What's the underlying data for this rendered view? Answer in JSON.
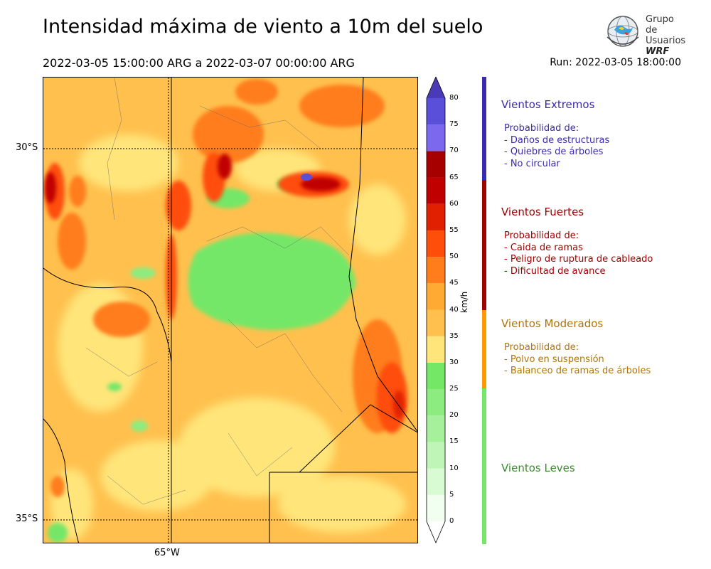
{
  "header": {
    "title": "Intensidad máxima de viento a 10m del suelo",
    "period": "2022-03-05 15:00:00 ARG  a  2022-03-07 00:00:00 ARG",
    "run": "Run: 2022-03-05 18:00:00"
  },
  "logo": {
    "line1": "Grupo de",
    "line2": "Usuarios",
    "line3": "WRF"
  },
  "map": {
    "lat_labels": [
      "30°S",
      "35°S"
    ],
    "lon_labels": [
      "65°W"
    ]
  },
  "colorbar": {
    "unit": "km/h",
    "ticks": [
      "0",
      "5",
      "10",
      "15",
      "20",
      "25",
      "30",
      "35",
      "40",
      "45",
      "50",
      "55",
      "60",
      "65",
      "70",
      "75",
      "80"
    ],
    "colors": [
      "#f0fff0",
      "#d9fbd3",
      "#c0f5b8",
      "#a6f09c",
      "#8cec80",
      "#74e767",
      "#ffe57a",
      "#ffc04d",
      "#ffab33",
      "#ff7d1a",
      "#ff4d0a",
      "#e02000",
      "#c00000",
      "#a60000",
      "#7b68ee",
      "#5a4fd8",
      "#4a3ab8"
    ]
  },
  "categories": [
    {
      "title": "Vientos Extremos",
      "color": "#3a2ab0",
      "lines": "Probabilidad de:\n- Daños de estructuras\n- Quiebres de árboles\n- No circular"
    },
    {
      "title": "Vientos Fuertes",
      "color": "#a00000",
      "lines": "Probabilidad de:\n- Caida de ramas\n- Peligro de ruptura de cableado\n- Dificultad de avance"
    },
    {
      "title": "Vientos Moderados",
      "color": "#b0740a",
      "lines": "Probabilidad de:\n- Polvo en suspensión\n- Balanceo de ramas de árboles"
    },
    {
      "title": "Vientos Leves",
      "color": "#3c8c2e",
      "lines": ""
    }
  ],
  "category_bar_colors": [
    "#3a2ab0",
    "#a00000",
    "#ff9900",
    "#74e767"
  ]
}
